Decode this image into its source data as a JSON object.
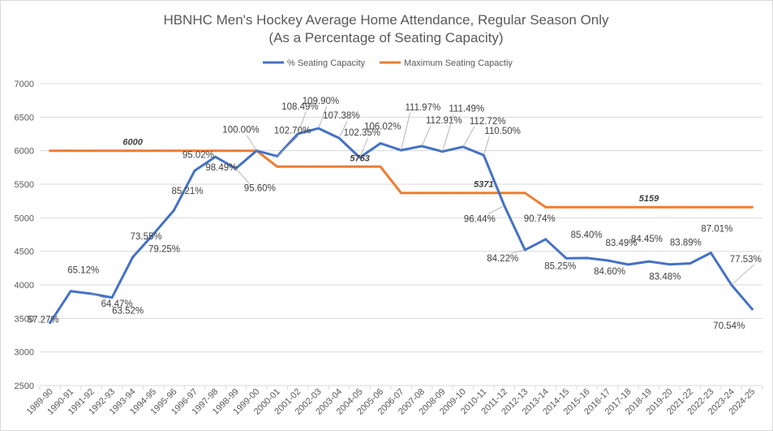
{
  "chart_data": {
    "type": "line",
    "title": "HBNHC Men's Hockey Average Home Attendance, Regular Season Only",
    "subtitle": "(As a Percentage of Seating Capacity)",
    "xlabel": "",
    "ylabel": "",
    "ylim": [
      2500,
      7000
    ],
    "yticks": [
      2500,
      3000,
      3500,
      4000,
      4500,
      5000,
      5500,
      6000,
      6500,
      7000
    ],
    "grid": true,
    "legend": "top-center",
    "colors": {
      "attendance": "#4472C4",
      "capacity": "#ED7D31",
      "grid": "#D9D9D9",
      "text": "#595959"
    },
    "categories": [
      "1989-90",
      "1990-91",
      "1991-92",
      "1992-93",
      "1993-94",
      "1994-95",
      "1995-96",
      "1996-97",
      "1997-98",
      "1998-99",
      "1999-00",
      "2000-01",
      "2001-02",
      "2002-03",
      "2003-04",
      "2004-05",
      "2005-06",
      "2006-07",
      "2007-08",
      "2008-09",
      "2009-10",
      "2010-11",
      "2011-12",
      "2012-13",
      "2013-14",
      "2014-15",
      "2015-16",
      "2016-17",
      "2017-18",
      "2018-19",
      "2019-20",
      "2021-22",
      "2022-23",
      "2023-24",
      "2024-25"
    ],
    "series": [
      {
        "name": "% Seating Capacity",
        "values": [
          3436,
          3907,
          3868,
          3811,
          4413,
          4755,
          5113,
          5701,
          5909,
          5736,
          6000,
          5919,
          6252,
          6334,
          6188,
          5898,
          6110,
          6007,
          6068,
          5988,
          6058,
          5934,
          5180,
          4521,
          4680,
          4395,
          4401,
          4364,
          4304,
          4349,
          4306,
          4321,
          4478,
          4000,
          3640
        ],
        "labels": [
          "57.27%",
          "65.12%",
          "64.47%",
          "63.52%",
          "73.55%",
          "79.25%",
          "85.21%",
          "95.02%",
          "98.49%",
          "95.60%",
          "100.00%",
          "102.70%",
          "108.49%",
          "109.90%",
          "107.38%",
          "102.35%",
          "106.02%",
          "111.97%",
          "112.91%",
          "111.49%",
          "112.72%",
          "110.50%",
          "96.44%",
          "84.22%",
          "90.74%",
          "85.25%",
          "85.40%",
          "84.60%",
          "83.49%",
          "84.45%",
          "83.48%",
          "83.89%",
          "87.01%",
          "77.53%",
          "70.54%"
        ]
      },
      {
        "name": "Maximum Seating Capactiy",
        "values": [
          6000,
          6000,
          6000,
          6000,
          6000,
          6000,
          6000,
          6000,
          6000,
          6000,
          6000,
          5763,
          5763,
          5763,
          5763,
          5763,
          5763,
          5371,
          5371,
          5371,
          5371,
          5371,
          5371,
          5371,
          5159,
          5159,
          5159,
          5159,
          5159,
          5159,
          5159,
          5159,
          5159,
          5159,
          5159
        ],
        "segment_labels": [
          {
            "text": "6000",
            "value": 6000,
            "at": "1993-94"
          },
          {
            "text": "5763",
            "value": 5763,
            "at": "2004-05"
          },
          {
            "text": "5371",
            "value": 5371,
            "at": "2010-11"
          },
          {
            "text": "5159",
            "value": 5159,
            "at": "2018-19"
          }
        ]
      }
    ]
  }
}
